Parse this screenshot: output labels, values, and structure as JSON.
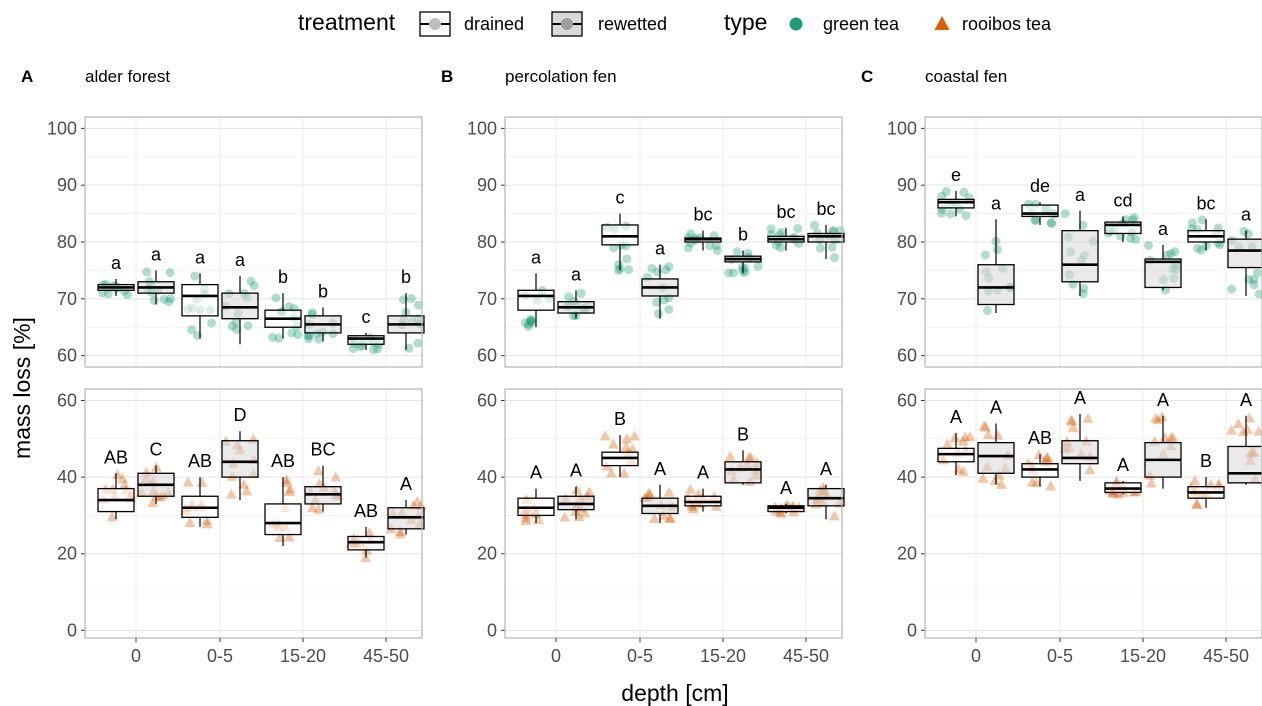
{
  "legend": {
    "treatment_title": "treatment",
    "treatment_items": [
      {
        "label": "drained",
        "fill": "#ffffff"
      },
      {
        "label": "rewetted",
        "fill": "#d9d9d9"
      }
    ],
    "type_title": "type",
    "type_items": [
      {
        "label": "green tea",
        "color": "#1b9e77",
        "shape": "circle"
      },
      {
        "label": "rooibos tea",
        "color": "#d95f02",
        "shape": "triangle"
      }
    ]
  },
  "ylabel": "mass loss [%]",
  "xlabel": "depth [cm]",
  "colors": {
    "green": "#1b9e77",
    "rooibos": "#d95f02",
    "drained_fill": "#ffffff",
    "rewetted_fill": "#d9d9d9"
  },
  "chart_data": {
    "type": "box",
    "x_categories": [
      "0",
      "0",
      "0-5",
      "0-5",
      "15-20",
      "15-20",
      "45-50",
      "45-50"
    ],
    "x_tick_labels": [
      "0",
      "0-5",
      "15-20",
      "45-50"
    ],
    "treatments": [
      "drained",
      "rewetted",
      "drained",
      "rewetted",
      "drained",
      "rewetted",
      "drained",
      "rewetted"
    ],
    "green_ylim": [
      58,
      102
    ],
    "green_yticks": [
      60,
      70,
      80,
      90,
      100
    ],
    "rooibos_ylim": [
      -2,
      63
    ],
    "rooibos_yticks": [
      0,
      20,
      40,
      60
    ],
    "grid": true,
    "legend_position": "top",
    "panels": [
      {
        "tag": "A",
        "title": "alder forest",
        "green": {
          "boxes": [
            [
              70.5,
              71.5,
              72,
              72.5,
              73.5
            ],
            [
              69,
              71,
              72,
              73,
              75
            ],
            [
              63,
              67,
              70.5,
              72.5,
              74.5
            ],
            [
              62,
              66.5,
              68.5,
              71,
              74
            ],
            [
              63,
              65,
              66.5,
              68,
              71
            ],
            [
              62.5,
              64,
              65.5,
              67,
              68.5
            ],
            [
              61,
              62,
              63,
              63.5,
              64
            ],
            [
              61,
              64,
              65.5,
              67,
              71
            ]
          ],
          "labels": [
            "a",
            "a",
            "a",
            "a",
            "b",
            "b",
            "c",
            "b"
          ]
        },
        "rooibos": {
          "boxes": [
            [
              29,
              31,
              34,
              37,
              41
            ],
            [
              33,
              35,
              38,
              41,
              43
            ],
            [
              27,
              29.5,
              32,
              35,
              40
            ],
            [
              34,
              40,
              44,
              49.5,
              52
            ],
            [
              22,
              25,
              28,
              33,
              40
            ],
            [
              31,
              33,
              35.5,
              37.5,
              43
            ],
            [
              19,
              21,
              23,
              24.5,
              27
            ],
            [
              25,
              26.5,
              29.5,
              32,
              34
            ]
          ],
          "labels": [
            "AB",
            "C",
            "AB",
            "D",
            "AB",
            "BC",
            "AB",
            "A"
          ]
        }
      },
      {
        "tag": "B",
        "title": "percolation fen",
        "green": {
          "boxes": [
            [
              65,
              68,
              70.5,
              71.5,
              74.5
            ],
            [
              66.5,
              67.5,
              68.5,
              69.5,
              71.5
            ],
            [
              75,
              79.5,
              81,
              83,
              85
            ],
            [
              66.5,
              70.5,
              72,
              73.5,
              76
            ],
            [
              78.5,
              80,
              80.5,
              80.7,
              82
            ],
            [
              74.5,
              76.5,
              77,
              77.5,
              78.5
            ],
            [
              78.5,
              80,
              80.5,
              81,
              82.5
            ],
            [
              77,
              80,
              81,
              81.5,
              83
            ]
          ],
          "labels": [
            "a",
            "a",
            "c",
            "a",
            "bc",
            "b",
            "bc",
            "bc"
          ]
        },
        "rooibos": {
          "boxes": [
            [
              28,
              30,
              32,
              34.5,
              37
            ],
            [
              29,
              31.5,
              33,
              35,
              37.5
            ],
            [
              40,
              43,
              45,
              46.5,
              51
            ],
            [
              28,
              30.5,
              32.5,
              34.5,
              38
            ],
            [
              31,
              32.5,
              33.5,
              35,
              37
            ],
            [
              38,
              38.5,
              42,
              44,
              47
            ],
            [
              30.5,
              31,
              32,
              32.5,
              33
            ],
            [
              29,
              32.5,
              34.5,
              37,
              38
            ]
          ],
          "labels": [
            "A",
            "A",
            "B",
            "A",
            "A",
            "B",
            "A",
            "A"
          ]
        }
      },
      {
        "tag": "C",
        "title": "coastal fen",
        "green": {
          "boxes": [
            [
              84.5,
              86,
              87,
              87.5,
              89
            ],
            [
              67.5,
              69,
              72,
              76,
              84
            ],
            [
              83,
              84.5,
              85,
              86.5,
              87
            ],
            [
              70.5,
              73,
              76,
              82,
              85.5
            ],
            [
              80,
              81.5,
              83,
              83.5,
              84.5
            ],
            [
              71.5,
              72,
              76.5,
              77,
              79.5
            ],
            [
              78.5,
              80,
              81,
              82,
              84
            ],
            [
              70.5,
              75.5,
              78.5,
              80.5,
              82
            ]
          ],
          "labels": [
            "e",
            "a",
            "de",
            "a",
            "cd",
            "a",
            "bc",
            "a"
          ]
        },
        "rooibos": {
          "boxes": [
            [
              40.5,
              44,
              46,
              47.5,
              51.5
            ],
            [
              38,
              41,
              45.5,
              49,
              54
            ],
            [
              37.5,
              40,
              42,
              43.5,
              46
            ],
            [
              39,
              43.5,
              45,
              49.5,
              56.5
            ],
            [
              35.5,
              36,
              37,
              38.5,
              39
            ],
            [
              37,
              40,
              44.5,
              49,
              56
            ],
            [
              32,
              34.5,
              36,
              37.5,
              40
            ],
            [
              38,
              38.5,
              41,
              48,
              56
            ]
          ],
          "labels": [
            "A",
            "A",
            "AB",
            "A",
            "A",
            "A",
            "B",
            "A"
          ]
        }
      }
    ]
  }
}
